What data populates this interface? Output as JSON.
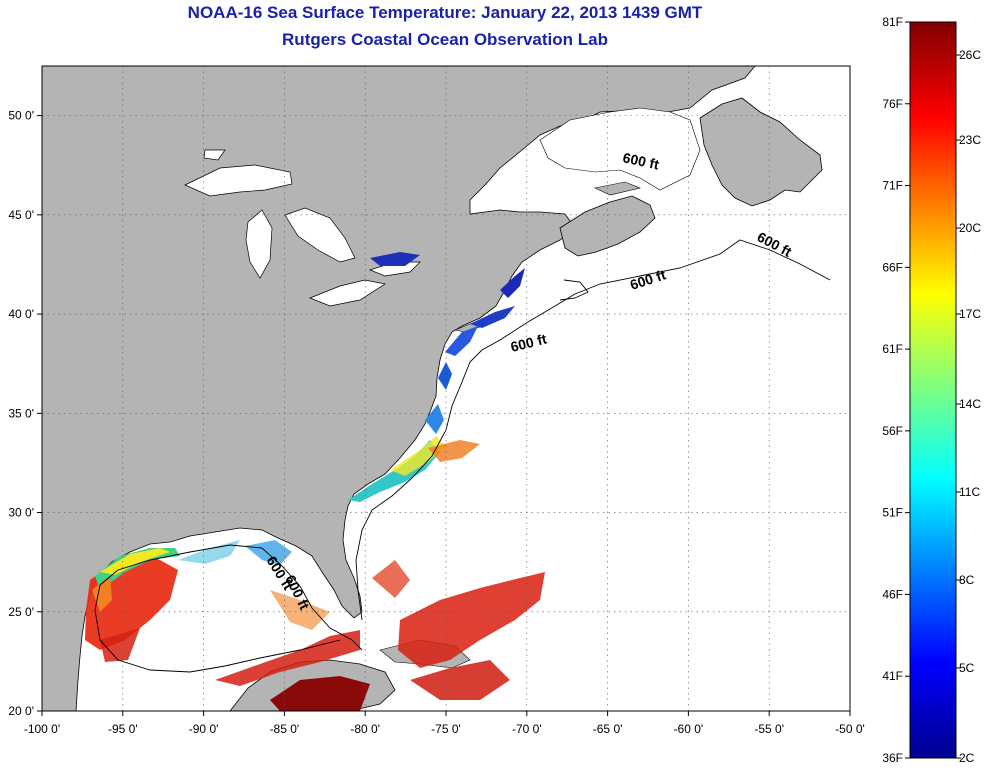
{
  "title": "NOAA-16 Sea Surface Temperature:  January 22, 2013 1439 GMT",
  "subtitle": "Rutgers Coastal Ocean Observation Lab",
  "map": {
    "lon_range": [
      -100,
      -50
    ],
    "lat_range": [
      20,
      52.5
    ],
    "lon_ticks": [
      "-100 0'",
      "-95 0'",
      "-90 0'",
      "-85 0'",
      "-80 0'",
      "-75 0'",
      "-70 0'",
      "-65 0'",
      "-60 0'",
      "-55 0'",
      "-50 0'"
    ],
    "lat_ticks": [
      "20 0'",
      "25 0'",
      "30 0'",
      "35 0'",
      "40 0'",
      "45 0'",
      "50 0'"
    ],
    "land_color": "#b4b4b4",
    "ocean_color": "#ffffff",
    "grid": "dotted",
    "isobath_labels": [
      "600 ft",
      "600 ft",
      "600 ft",
      "600 ft",
      "600 ft",
      "600 ft"
    ]
  },
  "colorbar": {
    "f_labels": [
      "81F",
      "76F",
      "71F",
      "66F",
      "61F",
      "56F",
      "51F",
      "46F",
      "41F",
      "36F"
    ],
    "c_labels": [
      "26C",
      "23C",
      "20C",
      "17C",
      "14C",
      "11C",
      "8C",
      "5C",
      "2C"
    ],
    "colors": [
      "#00008f",
      "#0000ff",
      "#00ffff",
      "#ffff00",
      "#ff0000",
      "#800000"
    ]
  }
}
